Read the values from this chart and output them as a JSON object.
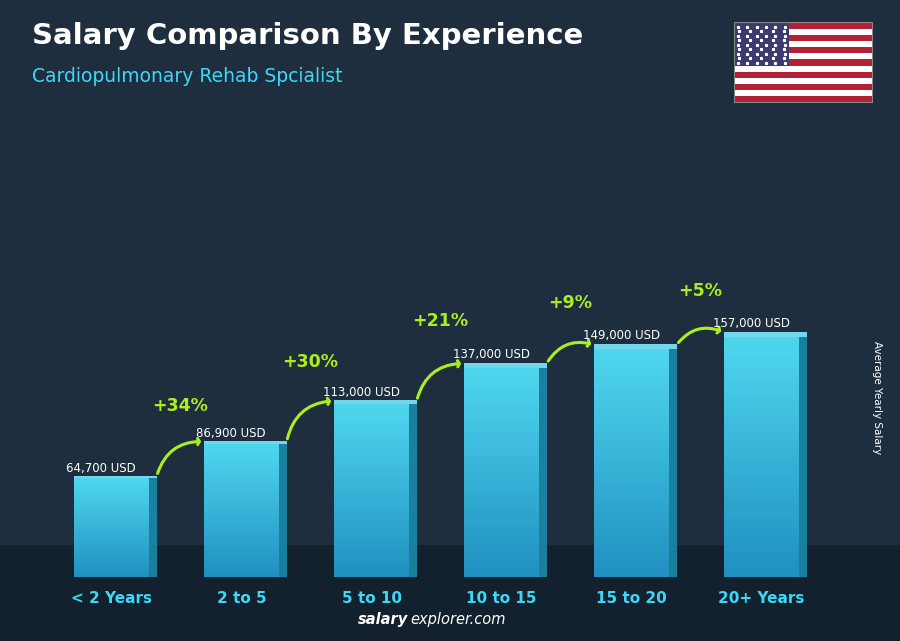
{
  "title": "Salary Comparison By Experience",
  "subtitle": "Cardiopulmonary Rehab Spcialist",
  "categories": [
    "< 2 Years",
    "2 to 5",
    "5 to 10",
    "10 to 15",
    "15 to 20",
    "20+ Years"
  ],
  "values": [
    64700,
    86900,
    113000,
    137000,
    149000,
    157000
  ],
  "labels": [
    "64,700 USD",
    "86,900 USD",
    "113,000 USD",
    "137,000 USD",
    "149,000 USD",
    "157,000 USD"
  ],
  "pct_labels": [
    "+34%",
    "+30%",
    "+21%",
    "+9%",
    "+5%"
  ],
  "bar_color": "#3cc8e8",
  "bar_side_color": "#1a8aaa",
  "bar_top_color": "#7ae0f8",
  "text_color_white": "#ffffff",
  "text_color_cyan": "#3dd8f8",
  "text_color_green": "#aaee22",
  "ylabel": "Average Yearly Salary",
  "footer_bold": "salary",
  "footer_normal": "explorer.com",
  "background_color": "#1e2e3e",
  "figsize": [
    9.0,
    6.41
  ],
  "dpi": 100
}
